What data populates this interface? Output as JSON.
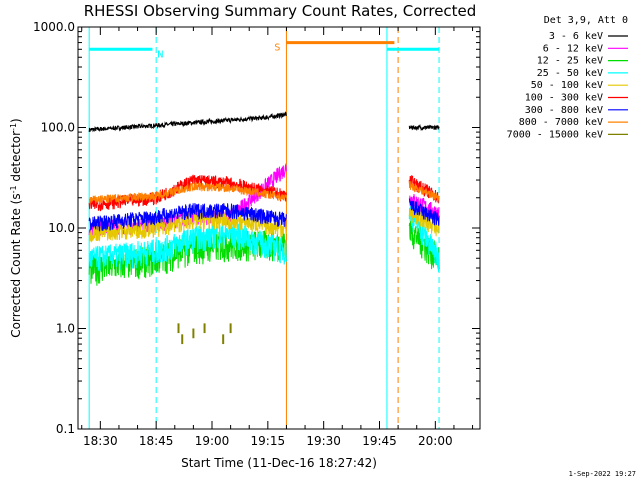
{
  "chart_data": {
    "type": "line",
    "title": "RHESSI Observing Summary Count Rates, Corrected",
    "xlabel": "Start Time (11-Dec-16 18:27:42)",
    "ylabel_main": "Corrected Count Rate (s",
    "ylabel_sup1": "-1",
    "ylabel_mid": " detector",
    "ylabel_sup2": "-1",
    "ylabel_end": ")",
    "yscale": "log",
    "ylim": [
      0.1,
      1000
    ],
    "xlim": [
      "18:24",
      "20:12"
    ],
    "x_ticks": [
      "18:30",
      "18:45",
      "19:00",
      "19:15",
      "19:30",
      "19:45",
      "20:00"
    ],
    "y_ticks": [
      "0.1",
      "1.0",
      "10.0",
      "100.0",
      "1000.0"
    ],
    "legend_title": "Det 3,9, Att 0",
    "series": [
      {
        "name": "3 - 6 keV",
        "color": "#000000",
        "x": [
          "18:27",
          "18:45",
          "19:00",
          "19:14",
          "19:20",
          "19:53",
          "20:01"
        ],
        "y": [
          95,
          105,
          115,
          125,
          135,
          100,
          100
        ]
      },
      {
        "name": "6 - 12 keV",
        "color": "#ff00ff",
        "x": [
          "18:27",
          "18:45",
          "18:55",
          "19:05",
          "19:20",
          "19:53",
          "20:01"
        ],
        "y": [
          10,
          11,
          13,
          13,
          40,
          20,
          14
        ]
      },
      {
        "name": "12 - 25 keV",
        "color": "#00dd00",
        "x": [
          "18:27",
          "18:45",
          "18:55",
          "19:05",
          "19:20",
          "19:53",
          "20:01"
        ],
        "y": [
          4,
          5,
          6.5,
          7,
          7,
          10,
          5
        ]
      },
      {
        "name": "25 - 50 keV",
        "color": "#00ffff",
        "x": [
          "18:27",
          "18:45",
          "18:55",
          "19:05",
          "19:20",
          "19:53",
          "20:01"
        ],
        "y": [
          5,
          6,
          8,
          9,
          6,
          15,
          5
        ]
      },
      {
        "name": "50 - 100 keV",
        "color": "#e6c800",
        "x": [
          "18:27",
          "18:45",
          "18:55",
          "19:05",
          "19:20",
          "19:53",
          "20:01"
        ],
        "y": [
          9,
          10,
          12,
          12,
          10,
          14,
          10
        ]
      },
      {
        "name": "100 - 300 keV",
        "color": "#ff0000",
        "x": [
          "18:27",
          "18:45",
          "18:55",
          "19:05",
          "19:20",
          "19:53",
          "20:01"
        ],
        "y": [
          17,
          20,
          30,
          28,
          21,
          30,
          20
        ]
      },
      {
        "name": "300 - 800 keV",
        "color": "#0000ff",
        "x": [
          "18:27",
          "18:45",
          "18:55",
          "19:05",
          "19:20",
          "19:53",
          "20:01"
        ],
        "y": [
          11,
          13,
          15,
          15,
          12,
          17,
          12
        ]
      },
      {
        "name": "800 - 7000 keV",
        "color": "#ff8000",
        "x": [
          "18:27",
          "18:45",
          "18:55",
          "19:05",
          "19:20",
          "19:53",
          "20:01"
        ],
        "y": [
          19,
          21,
          26,
          25,
          20,
          27,
          20
        ]
      },
      {
        "name": "7000 - 15000 keV",
        "color": "#808000",
        "x": [
          "18:51",
          "18:52",
          "18:55",
          "18:58",
          "19:03",
          "19:05"
        ],
        "y": [
          0.9,
          0.7,
          0.8,
          0.9,
          0.7,
          0.9
        ]
      }
    ],
    "flags": [
      {
        "label": "N",
        "color": "#00ffff",
        "x_start": "18:27",
        "x_end": "18:44",
        "y": 600
      },
      {
        "label": "S",
        "color": "#ff8000",
        "x_start": "19:20",
        "x_end": "19:49",
        "y": 700
      },
      {
        "label": "",
        "color": "#00ffff",
        "x_start": "19:47",
        "x_end": "20:01",
        "y": 600
      }
    ],
    "vlines": [
      {
        "x": "18:27",
        "color": "#00ffff",
        "style": "solid"
      },
      {
        "x": "18:45",
        "color": "#00ffff",
        "style": "dashed"
      },
      {
        "x": "19:20",
        "color": "#ff8000",
        "style": "solid"
      },
      {
        "x": "19:47",
        "color": "#00ffff",
        "style": "solid"
      },
      {
        "x": "19:50",
        "color": "#ff8000",
        "style": "dashed"
      },
      {
        "x": "20:01",
        "color": "#00ffff",
        "style": "dashed"
      }
    ],
    "legend_placement": "right",
    "grid": false
  },
  "timestamp": "1-Sep-2022 19:27",
  "colors": {
    "background": "#ffffff",
    "axes": "#000000"
  }
}
